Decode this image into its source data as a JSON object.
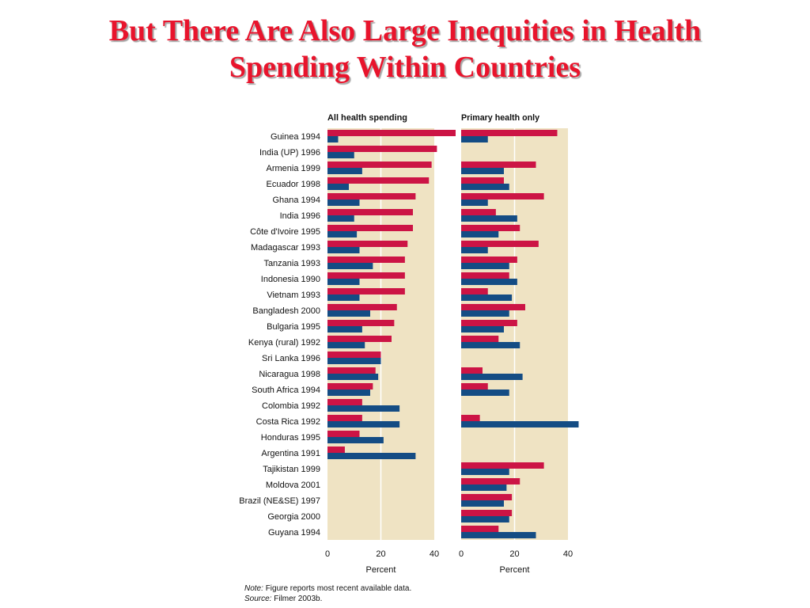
{
  "title_line1": "But There Are Also Large Inequities in Health",
  "title_line2": "Spending Within Countries",
  "colors": {
    "richest": "#cc1445",
    "poorest": "#144c84",
    "panel_bg": "#efe3c3",
    "grid": "#ffffff",
    "title": "#e8142c"
  },
  "note_label": "Note:",
  "note_text": "Figure reports most recent available data.",
  "source_label": "Source:",
  "source_text": "Filmer 2003b.",
  "chart_data": {
    "type": "bar",
    "orientation": "horizontal",
    "categories": [
      "Guinea 1994",
      "India (UP) 1996",
      "Armenia 1999",
      "Ecuador 1998",
      "Ghana 1994",
      "India 1996",
      "Côte d'Ivoire 1995",
      "Madagascar 1993",
      "Tanzania 1993",
      "Indonesia 1990",
      "Vietnam 1993",
      "Bangladesh 2000",
      "Bulgaria 1995",
      "Kenya (rural) 1992",
      "Sri Lanka 1996",
      "Nicaragua 1998",
      "South Africa 1994",
      "Colombia 1992",
      "Costa Rica 1992",
      "Honduras 1995",
      "Argentina 1991",
      "Tajikistan 1999",
      "Moldova  2001",
      "Brazil (NE&SE) 1997",
      "Georgia 2000",
      "Guyana 1994"
    ],
    "xlabel": "Percent",
    "xticks": [
      0,
      20,
      40
    ],
    "xlim": [
      0,
      40
    ],
    "grid": true,
    "panels": [
      {
        "title": "All health spending",
        "series": [
          {
            "values": [
              48,
              41,
              39,
              38,
              33,
              32,
              32,
              30,
              29,
              29,
              29,
              26,
              25,
              24,
              20,
              18,
              17,
              13,
              13,
              12,
              6.5,
              null,
              null,
              null,
              null,
              null
            ]
          },
          {
            "values": [
              4,
              10,
              13,
              8,
              12,
              10,
              11,
              12,
              17,
              12,
              12,
              16,
              13,
              14,
              20,
              19,
              16,
              27,
              27,
              21,
              33,
              null,
              null,
              null,
              null,
              null
            ]
          }
        ]
      },
      {
        "title": "Primary health only",
        "series": [
          {
            "values": [
              36,
              null,
              28,
              16,
              31,
              13,
              22,
              29,
              21,
              18,
              10,
              24,
              21,
              14,
              null,
              8,
              10,
              null,
              7,
              null,
              null,
              31,
              22,
              19,
              19,
              14
            ]
          },
          {
            "values": [
              10,
              null,
              16,
              18,
              10,
              21,
              14,
              10,
              18,
              21,
              19,
              18,
              16,
              22,
              null,
              23,
              18,
              null,
              44,
              null,
              null,
              18,
              17,
              16,
              18,
              28
            ]
          }
        ]
      }
    ]
  }
}
